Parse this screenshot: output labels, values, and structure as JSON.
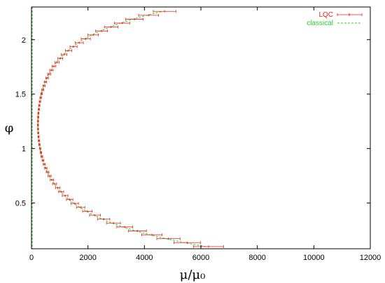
{
  "chart_data": {
    "type": "scatter",
    "title": "",
    "xlabel": "μ/μ₀",
    "ylabel": "φ",
    "xlim": [
      0,
      12000
    ],
    "ylim": [
      0.08,
      2.3
    ],
    "xticks": [
      0,
      2000,
      4000,
      6000,
      8000,
      10000,
      12000
    ],
    "xtick_labels": [
      "0",
      "2000",
      "4000",
      "6000",
      "8000",
      "10000",
      "12000"
    ],
    "yticks": [
      0.5,
      1,
      1.5,
      2
    ],
    "ytick_labels": [
      "0.5",
      "1",
      "1.5",
      "2"
    ],
    "grid": false,
    "legend_position": "top-right",
    "curve_model": {
      "form": "mu = mu_min * cosh(k * (phi - phi_min))",
      "mu_min": 230,
      "k": 3.57,
      "phi_min": 1.22
    },
    "sampling": {
      "phi_start": 0.1,
      "phi_end": 2.26,
      "phi_step": 0.036,
      "error_fraction": 0.085
    },
    "series": [
      {
        "name": "LQC",
        "color": "#e8231c",
        "style": "points-with-xerrorbars"
      },
      {
        "name": "classical",
        "color": "#2bcf2b",
        "style": "dashed-line"
      }
    ]
  }
}
